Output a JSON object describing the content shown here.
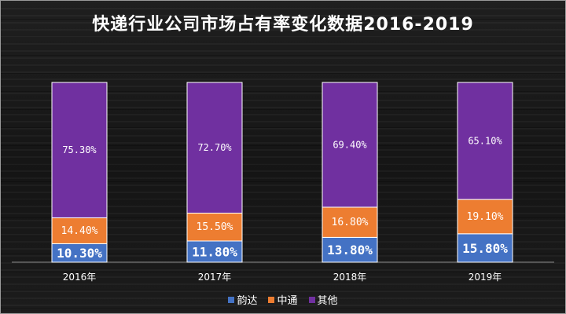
{
  "chart_data": {
    "type": "bar",
    "stacked": true,
    "title": "快递行业公司市场占有率变化数据2016-2019",
    "categories": [
      "2016年",
      "2017年",
      "2018年",
      "2019年"
    ],
    "series": [
      {
        "name": "韵达",
        "color": "#4472C4",
        "values": [
          10.3,
          11.8,
          13.8,
          15.8
        ],
        "labels": [
          "10.30%",
          "11.80%",
          "13.80%",
          "15.80%"
        ]
      },
      {
        "name": "中通",
        "color": "#ED7D31",
        "values": [
          14.4,
          15.5,
          16.8,
          19.1
        ],
        "labels": [
          "14.40%",
          "15.50%",
          "16.80%",
          "19.10%"
        ]
      },
      {
        "name": "其他",
        "color": "#7030A0",
        "values": [
          75.3,
          72.7,
          69.4,
          65.1
        ],
        "labels": [
          "75.30%",
          "72.70%",
          "69.40%",
          "65.10%"
        ]
      }
    ],
    "ylim": [
      0,
      100
    ],
    "legend_position": "bottom",
    "grid": false
  }
}
